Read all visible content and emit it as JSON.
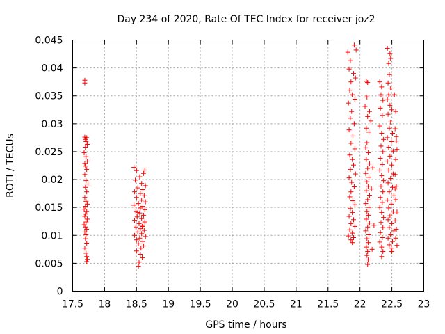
{
  "chart_data": {
    "type": "scatter",
    "title": "Day 234 of 2020, Rate Of TEC Index for receiver joz2",
    "xlabel": "GPS time / hours",
    "ylabel": "ROTI / TECUs",
    "xlim": [
      17.5,
      23
    ],
    "ylim": [
      0,
      0.045
    ],
    "x_ticks": [
      "17.5",
      "18",
      "18.5",
      "19",
      "19.5",
      "20",
      "20.5",
      "21",
      "21.5",
      "22",
      "22.5",
      "23"
    ],
    "y_ticks": [
      "0",
      "0.005",
      "0.01",
      "0.015",
      "0.02",
      "0.025",
      "0.03",
      "0.035",
      "0.04",
      "0.045"
    ],
    "grid": true,
    "marker": "+",
    "color": "#ff0000",
    "series": [
      {
        "name": "ROTI",
        "points": [
          [
            17.69,
            0.0378
          ],
          [
            17.69,
            0.0373
          ],
          [
            17.69,
            0.0276
          ],
          [
            17.7,
            0.0272
          ],
          [
            17.71,
            0.0268
          ],
          [
            17.72,
            0.0275
          ],
          [
            17.73,
            0.0263
          ],
          [
            17.7,
            0.0258
          ],
          [
            17.68,
            0.0248
          ],
          [
            17.73,
            0.0233
          ],
          [
            17.7,
            0.0224
          ],
          [
            17.72,
            0.0218
          ],
          [
            17.69,
            0.0209
          ],
          [
            17.71,
            0.0198
          ],
          [
            17.74,
            0.0192
          ],
          [
            17.7,
            0.0186
          ],
          [
            17.72,
            0.0178
          ],
          [
            17.69,
            0.0168
          ],
          [
            17.71,
            0.0161
          ],
          [
            17.73,
            0.0156
          ],
          [
            17.7,
            0.0152
          ],
          [
            17.68,
            0.0147
          ],
          [
            17.72,
            0.0143
          ],
          [
            17.7,
            0.0138
          ],
          [
            17.69,
            0.0134
          ],
          [
            17.73,
            0.0129
          ],
          [
            17.71,
            0.0124
          ],
          [
            17.68,
            0.0119
          ],
          [
            17.7,
            0.0115
          ],
          [
            17.72,
            0.0111
          ],
          [
            17.69,
            0.0106
          ],
          [
            17.71,
            0.0101
          ],
          [
            17.7,
            0.0094
          ],
          [
            17.72,
            0.0086
          ],
          [
            17.69,
            0.0077
          ],
          [
            17.71,
            0.0068
          ],
          [
            17.72,
            0.0062
          ],
          [
            17.73,
            0.0057
          ],
          [
            17.72,
            0.0053
          ],
          [
            18.46,
            0.0222
          ],
          [
            18.5,
            0.0216
          ],
          [
            18.63,
            0.0217
          ],
          [
            18.61,
            0.0211
          ],
          [
            18.55,
            0.0205
          ],
          [
            18.48,
            0.0199
          ],
          [
            18.58,
            0.0193
          ],
          [
            18.64,
            0.0189
          ],
          [
            18.52,
            0.0185
          ],
          [
            18.6,
            0.0182
          ],
          [
            18.47,
            0.0178
          ],
          [
            18.56,
            0.0175
          ],
          [
            18.62,
            0.0171
          ],
          [
            18.5,
            0.0168
          ],
          [
            18.58,
            0.0163
          ],
          [
            18.64,
            0.016
          ],
          [
            18.53,
            0.0157
          ],
          [
            18.46,
            0.0154
          ],
          [
            18.6,
            0.0152
          ],
          [
            18.56,
            0.0149
          ],
          [
            18.63,
            0.0146
          ],
          [
            18.49,
            0.0143
          ],
          [
            18.55,
            0.014
          ],
          [
            18.61,
            0.0136
          ],
          [
            18.51,
            0.0133
          ],
          [
            18.58,
            0.013
          ],
          [
            18.47,
            0.0127
          ],
          [
            18.63,
            0.0124
          ],
          [
            18.54,
            0.0121
          ],
          [
            18.6,
            0.0118
          ],
          [
            18.49,
            0.0115
          ],
          [
            18.56,
            0.0112
          ],
          [
            18.62,
            0.0109
          ],
          [
            18.52,
            0.0106
          ],
          [
            18.58,
            0.0103
          ],
          [
            18.47,
            0.01
          ],
          [
            18.64,
            0.0098
          ],
          [
            18.55,
            0.0095
          ],
          [
            18.5,
            0.0092
          ],
          [
            18.6,
            0.0089
          ],
          [
            18.53,
            0.0085
          ],
          [
            18.61,
            0.0081
          ],
          [
            18.57,
            0.0077
          ],
          [
            18.5,
            0.0072
          ],
          [
            18.56,
            0.0066
          ],
          [
            18.59,
            0.006
          ],
          [
            18.54,
            0.0052
          ],
          [
            18.53,
            0.0045
          ],
          [
            17.71,
            0.0241
          ],
          [
            17.69,
            0.0229
          ],
          [
            18.52,
            0.0141
          ],
          [
            18.59,
            0.0116
          ],
          [
            21.81,
            0.0428
          ],
          [
            21.91,
            0.0441
          ],
          [
            21.94,
            0.0432
          ],
          [
            21.85,
            0.0413
          ],
          [
            21.83,
            0.0398
          ],
          [
            21.9,
            0.039
          ],
          [
            21.86,
            0.0375
          ],
          [
            21.93,
            0.0382
          ],
          [
            21.84,
            0.036
          ],
          [
            21.88,
            0.0352
          ],
          [
            21.92,
            0.0344
          ],
          [
            21.82,
            0.0337
          ],
          [
            21.87,
            0.0322
          ],
          [
            21.85,
            0.031
          ],
          [
            21.91,
            0.03
          ],
          [
            21.83,
            0.0289
          ],
          [
            21.89,
            0.0278
          ],
          [
            21.86,
            0.0265
          ],
          [
            21.92,
            0.0255
          ],
          [
            21.84,
            0.0244
          ],
          [
            21.88,
            0.0236
          ],
          [
            21.9,
            0.0226
          ],
          [
            21.85,
            0.0218
          ],
          [
            21.93,
            0.021
          ],
          [
            21.83,
            0.0203
          ],
          [
            21.87,
            0.0195
          ],
          [
            21.91,
            0.0187
          ],
          [
            21.86,
            0.0178
          ],
          [
            21.84,
            0.0169
          ],
          [
            21.89,
            0.0162
          ],
          [
            21.92,
            0.0155
          ],
          [
            21.85,
            0.0148
          ],
          [
            21.88,
            0.0141
          ],
          [
            21.83,
            0.0134
          ],
          [
            21.9,
            0.0128
          ],
          [
            21.86,
            0.0121
          ],
          [
            21.92,
            0.0116
          ],
          [
            21.84,
            0.011
          ],
          [
            21.88,
            0.0104
          ],
          [
            21.82,
            0.0099
          ],
          [
            21.9,
            0.0096
          ],
          [
            21.86,
            0.0092
          ],
          [
            21.88,
            0.0087
          ],
          [
            22.1,
            0.0376
          ],
          [
            22.12,
            0.0374
          ],
          [
            22.11,
            0.0348
          ],
          [
            22.08,
            0.0331
          ],
          [
            22.15,
            0.0322
          ],
          [
            22.12,
            0.0313
          ],
          [
            22.1,
            0.0292
          ],
          [
            22.14,
            0.0285
          ],
          [
            22.11,
            0.0266
          ],
          [
            22.09,
            0.0257
          ],
          [
            22.13,
            0.0248
          ],
          [
            22.1,
            0.0236
          ],
          [
            22.15,
            0.0228
          ],
          [
            22.12,
            0.022
          ],
          [
            22.09,
            0.0211
          ],
          [
            22.14,
            0.0204
          ],
          [
            22.11,
            0.0196
          ],
          [
            22.13,
            0.0188
          ],
          [
            22.1,
            0.018
          ],
          [
            22.15,
            0.0172
          ],
          [
            22.12,
            0.0164
          ],
          [
            22.09,
            0.0157
          ],
          [
            22.14,
            0.015
          ],
          [
            22.11,
            0.0143
          ],
          [
            22.13,
            0.0136
          ],
          [
            22.1,
            0.0129
          ],
          [
            22.15,
            0.0122
          ],
          [
            22.12,
            0.0115
          ],
          [
            22.09,
            0.0108
          ],
          [
            22.14,
            0.0101
          ],
          [
            22.11,
            0.0094
          ],
          [
            22.13,
            0.0087
          ],
          [
            22.1,
            0.0079
          ],
          [
            22.12,
            0.0071
          ],
          [
            22.11,
            0.0064
          ],
          [
            22.13,
            0.0056
          ],
          [
            22.12,
            0.0048
          ],
          [
            22.17,
            0.0305
          ],
          [
            22.2,
            0.0221
          ],
          [
            22.18,
            0.0183
          ],
          [
            22.22,
            0.0118
          ],
          [
            22.19,
            0.0075
          ],
          [
            22.31,
            0.0375
          ],
          [
            22.34,
            0.0366
          ],
          [
            22.33,
            0.0352
          ],
          [
            22.36,
            0.0342
          ],
          [
            22.32,
            0.0328
          ],
          [
            22.35,
            0.0315
          ],
          [
            22.31,
            0.0296
          ],
          [
            22.34,
            0.0283
          ],
          [
            22.37,
            0.0272
          ],
          [
            22.33,
            0.026
          ],
          [
            22.36,
            0.025
          ],
          [
            22.32,
            0.0238
          ],
          [
            22.35,
            0.0227
          ],
          [
            22.31,
            0.0217
          ],
          [
            22.34,
            0.0207
          ],
          [
            22.37,
            0.0198
          ],
          [
            22.33,
            0.0188
          ],
          [
            22.36,
            0.0178
          ],
          [
            22.32,
            0.0168
          ],
          [
            22.35,
            0.0159
          ],
          [
            22.31,
            0.015
          ],
          [
            22.34,
            0.0141
          ],
          [
            22.37,
            0.0132
          ],
          [
            22.33,
            0.0123
          ],
          [
            22.36,
            0.0114
          ],
          [
            22.32,
            0.0105
          ],
          [
            22.35,
            0.0096
          ],
          [
            22.31,
            0.0088
          ],
          [
            22.34,
            0.0079
          ],
          [
            22.36,
            0.0071
          ],
          [
            22.34,
            0.0062
          ],
          [
            22.43,
            0.0435
          ],
          [
            22.47,
            0.0426
          ],
          [
            22.48,
            0.0417
          ],
          [
            22.45,
            0.0408
          ],
          [
            22.46,
            0.0388
          ],
          [
            22.44,
            0.0373
          ],
          [
            22.48,
            0.0364
          ],
          [
            22.45,
            0.0352
          ],
          [
            22.43,
            0.0343
          ],
          [
            22.47,
            0.0333
          ],
          [
            22.5,
            0.0325
          ],
          [
            22.44,
            0.0317
          ],
          [
            22.48,
            0.0303
          ],
          [
            22.46,
            0.0292
          ],
          [
            22.51,
            0.0283
          ],
          [
            22.43,
            0.0275
          ],
          [
            22.49,
            0.0268
          ],
          [
            22.45,
            0.0258
          ],
          [
            22.52,
            0.0251
          ],
          [
            22.47,
            0.0242
          ],
          [
            22.43,
            0.0233
          ],
          [
            22.5,
            0.0226
          ],
          [
            22.45,
            0.0217
          ],
          [
            22.52,
            0.021
          ],
          [
            22.48,
            0.0202
          ],
          [
            22.44,
            0.0194
          ],
          [
            22.51,
            0.0186
          ],
          [
            22.46,
            0.0178
          ],
          [
            22.53,
            0.0171
          ],
          [
            22.43,
            0.0163
          ],
          [
            22.49,
            0.0156
          ],
          [
            22.45,
            0.0149
          ],
          [
            22.52,
            0.0142
          ],
          [
            22.47,
            0.0135
          ],
          [
            22.44,
            0.0128
          ],
          [
            22.5,
            0.0121
          ],
          [
            22.46,
            0.0114
          ],
          [
            22.53,
            0.0108
          ],
          [
            22.48,
            0.0101
          ],
          [
            22.44,
            0.0095
          ],
          [
            22.51,
            0.0089
          ],
          [
            22.46,
            0.0083
          ],
          [
            22.49,
            0.0077
          ],
          [
            22.5,
            0.0071
          ],
          [
            22.54,
            0.0352
          ],
          [
            22.56,
            0.0322
          ],
          [
            22.55,
            0.0291
          ],
          [
            22.57,
            0.0277
          ],
          [
            22.58,
            0.0254
          ],
          [
            22.56,
            0.0236
          ],
          [
            22.55,
            0.0209
          ],
          [
            22.57,
            0.0188
          ],
          [
            22.56,
            0.0164
          ],
          [
            22.58,
            0.0142
          ],
          [
            22.55,
            0.0126
          ],
          [
            22.57,
            0.0111
          ],
          [
            22.56,
            0.0095
          ],
          [
            22.58,
            0.0082
          ],
          [
            22.55,
            0.0183
          ],
          [
            22.57,
            0.0269
          ]
        ]
      }
    ]
  }
}
